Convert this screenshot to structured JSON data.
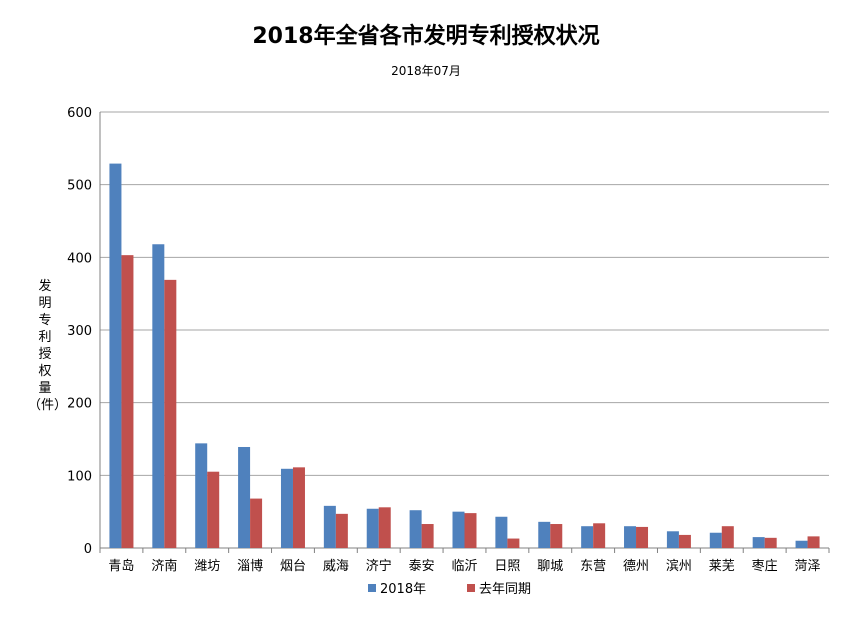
{
  "chart_data": {
    "type": "bar",
    "title": "2018年全省各市发明专利授权状况",
    "subtitle": "2018年07月",
    "xlabel": "",
    "ylabel": "发明专利授权量（件）",
    "ylim": [
      0,
      600
    ],
    "yticks": [
      0,
      100,
      200,
      300,
      400,
      500,
      600
    ],
    "grid": true,
    "legend_position": "bottom",
    "categories": [
      "青岛",
      "济南",
      "潍坊",
      "淄博",
      "烟台",
      "威海",
      "济宁",
      "泰安",
      "临沂",
      "日照",
      "聊城",
      "东营",
      "德州",
      "滨州",
      "莱芜",
      "枣庄",
      "菏泽"
    ],
    "series": [
      {
        "name": "2018年",
        "color": "#4f81bd",
        "values": [
          529,
          418,
          144,
          139,
          109,
          58,
          54,
          52,
          50,
          43,
          36,
          30,
          30,
          23,
          21,
          15,
          10
        ]
      },
      {
        "name": "去年同期",
        "color": "#c0504d",
        "values": [
          403,
          369,
          105,
          68,
          111,
          47,
          56,
          33,
          48,
          13,
          33,
          34,
          29,
          18,
          30,
          14,
          16
        ]
      }
    ]
  }
}
